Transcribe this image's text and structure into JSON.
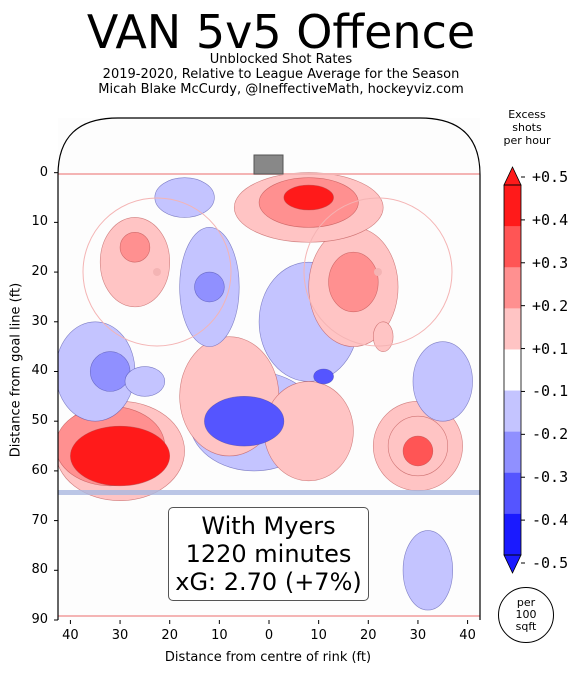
{
  "chart_data": {
    "type": "heatmap",
    "title": "VAN 5v5 Offence",
    "subtitle_lines": [
      "Unblocked Shot Rates",
      "2019-2020, Relative to League Average for the Season",
      "Micah Blake McCurdy, @IneffectiveMath, hockeyviz.com"
    ],
    "xlabel": "Distance from centre of rink (ft)",
    "ylabel": "Distance from goal line (ft)",
    "x_ticks": [
      "40",
      "30",
      "20",
      "10",
      "0",
      "10",
      "20",
      "30",
      "40"
    ],
    "y_ticks": [
      "0",
      "10",
      "20",
      "30",
      "40",
      "50",
      "60",
      "70",
      "80",
      "90"
    ],
    "xlim": [
      -42.5,
      42.5
    ],
    "ylim": [
      90,
      -11
    ],
    "colorbar": {
      "title_lines": [
        "Excess",
        "shots",
        "per hour"
      ],
      "tick_labels": [
        "+0.5",
        "+0.4",
        "+0.3",
        "+0.2",
        "+0.1",
        "-0.1",
        "-0.2",
        "-0.3",
        "-0.4",
        "-0.5"
      ],
      "levels": [
        0.5,
        0.4,
        0.3,
        0.2,
        0.1,
        -0.1,
        -0.2,
        -0.3,
        -0.4,
        -0.5
      ],
      "colors": [
        "#ff1a1a",
        "#ff5555",
        "#ff9090",
        "#ffc4c4",
        "#ffffff",
        "#c4c4ff",
        "#9090ff",
        "#5555ff",
        "#1a1aff"
      ]
    },
    "annotation_lines": [
      "With Myers",
      "1220 minutes",
      "xG: 2.70 (+7%)"
    ],
    "unit_lines": [
      "per",
      "100",
      "sqft"
    ],
    "regions": [
      {
        "x": -30,
        "y": 57,
        "rx": 10,
        "ry": 6,
        "level": 0.5
      },
      {
        "x": -32,
        "y": 55,
        "rx": 11,
        "ry": 8,
        "level": 0.3
      },
      {
        "x": -30,
        "y": 56,
        "rx": 13,
        "ry": 10,
        "level": 0.1
      },
      {
        "x": -27,
        "y": 15,
        "rx": 3,
        "ry": 3,
        "level": 0.3
      },
      {
        "x": -27,
        "y": 18,
        "rx": 7,
        "ry": 9,
        "level": 0.1
      },
      {
        "x": 8,
        "y": 5,
        "rx": 5,
        "ry": 2.5,
        "level": 0.5
      },
      {
        "x": 8,
        "y": 6,
        "rx": 10,
        "ry": 5,
        "level": 0.3
      },
      {
        "x": 8,
        "y": 7,
        "rx": 15,
        "ry": 7,
        "level": 0.1
      },
      {
        "x": 17,
        "y": 22,
        "rx": 5,
        "ry": 6,
        "level": 0.3
      },
      {
        "x": 17,
        "y": 23,
        "rx": 9,
        "ry": 12,
        "level": 0.1
      },
      {
        "x": 30,
        "y": 56,
        "rx": 3,
        "ry": 3,
        "level": 0.4
      },
      {
        "x": 30,
        "y": 55,
        "rx": 6,
        "ry": 6,
        "level": 0.2
      },
      {
        "x": 30,
        "y": 55,
        "rx": 9,
        "ry": 9,
        "level": 0.1
      },
      {
        "x": 23,
        "y": 33,
        "rx": 2,
        "ry": 3,
        "level": 0.1
      },
      {
        "x": -8,
        "y": 45,
        "rx": 10,
        "ry": 12,
        "level": 0.1
      },
      {
        "x": 8,
        "y": 52,
        "rx": 9,
        "ry": 10,
        "level": 0.1
      },
      {
        "x": -5,
        "y": 50,
        "rx": 8,
        "ry": 5,
        "level": -0.3
      },
      {
        "x": -3,
        "y": 50,
        "rx": 13,
        "ry": 10,
        "level": -0.1
      },
      {
        "x": -12,
        "y": 23,
        "rx": 3,
        "ry": 3,
        "level": -0.2
      },
      {
        "x": -12,
        "y": 23,
        "rx": 6,
        "ry": 12,
        "level": -0.1
      },
      {
        "x": -17,
        "y": 5,
        "rx": 6,
        "ry": 4,
        "level": -0.1
      },
      {
        "x": -32,
        "y": 40,
        "rx": 4,
        "ry": 4,
        "level": -0.2
      },
      {
        "x": -35,
        "y": 40,
        "rx": 8,
        "ry": 10,
        "level": -0.1
      },
      {
        "x": 8,
        "y": 30,
        "rx": 10,
        "ry": 12,
        "level": -0.1
      },
      {
        "x": 11,
        "y": 41,
        "rx": 2,
        "ry": 1.5,
        "level": -0.3
      },
      {
        "x": 35,
        "y": 42,
        "rx": 6,
        "ry": 8,
        "level": -0.1
      },
      {
        "x": 32,
        "y": 80,
        "rx": 5,
        "ry": 8,
        "level": -0.1
      },
      {
        "x": -25,
        "y": 42,
        "rx": 4,
        "ry": 3,
        "level": -0.1
      }
    ]
  }
}
